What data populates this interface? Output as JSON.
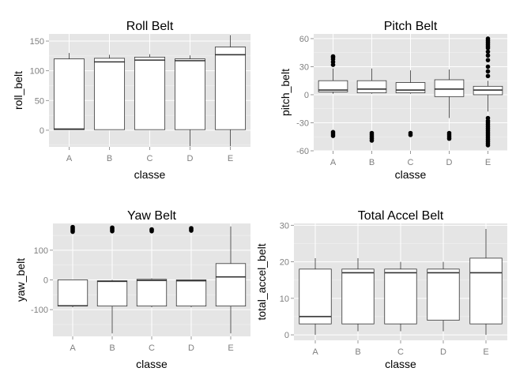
{
  "chart_data": [
    {
      "type": "boxplot",
      "title": "Roll Belt",
      "xlabel": "classe",
      "ylabel": "roll_belt",
      "categories": [
        "A",
        "B",
        "C",
        "D",
        "E"
      ],
      "ylim": [
        -28,
        162
      ],
      "yticks": [
        0,
        50,
        100,
        150
      ],
      "grid": true,
      "boxes": [
        {
          "min": 1,
          "q1": 1,
          "median": 2,
          "q3": 120,
          "max": 130,
          "outliers": []
        },
        {
          "min": 1,
          "q1": 1,
          "median": 115,
          "q3": 121,
          "max": 127,
          "outliers": []
        },
        {
          "min": 1,
          "q1": 1,
          "median": 118,
          "q3": 123,
          "max": 128,
          "outliers": []
        },
        {
          "min": -27,
          "q1": 1,
          "median": 117,
          "q3": 120,
          "max": 126,
          "outliers": []
        },
        {
          "min": -27,
          "q1": 1,
          "median": 127,
          "q3": 140,
          "max": 160,
          "outliers": []
        }
      ]
    },
    {
      "type": "boxplot",
      "title": "Pitch Belt",
      "xlabel": "classe",
      "ylabel": "pitch_belt",
      "categories": [
        "A",
        "B",
        "C",
        "D",
        "E"
      ],
      "ylim": [
        -60,
        65
      ],
      "yticks": [
        -60,
        -30,
        0,
        30,
        60
      ],
      "grid": true,
      "boxes": [
        {
          "min": 1,
          "q1": 3,
          "median": 5,
          "q3": 15,
          "max": 28,
          "outliers": [
            32,
            35,
            38,
            40,
            41,
            -40,
            -42,
            -44
          ]
        },
        {
          "min": 1,
          "q1": 2,
          "median": 6,
          "q3": 15,
          "max": 28,
          "outliers": [
            -41,
            -43,
            -45,
            -47,
            -49
          ]
        },
        {
          "min": 1,
          "q1": 2,
          "median": 5,
          "q3": 13,
          "max": 26,
          "outliers": [
            -41,
            -43
          ]
        },
        {
          "min": -25,
          "q1": -2,
          "median": 6,
          "q3": 16,
          "max": 27,
          "outliers": [
            -41,
            -43,
            -45,
            -47
          ]
        },
        {
          "min": -18,
          "q1": 0,
          "median": 5,
          "q3": 9,
          "max": 15,
          "outliers": [
            60,
            58,
            56,
            54,
            52,
            50,
            46,
            42,
            37,
            30,
            25,
            20,
            -25,
            -28,
            -30,
            -32,
            -34,
            -36,
            -38,
            -40,
            -42,
            -44,
            -46,
            -48,
            -50,
            -52,
            -54
          ]
        }
      ]
    },
    {
      "type": "boxplot",
      "title": "Yaw Belt",
      "xlabel": "classe",
      "ylabel": "yaw_belt",
      "categories": [
        "A",
        "B",
        "C",
        "D",
        "E"
      ],
      "ylim": [
        -190,
        190
      ],
      "yticks": [
        -100,
        0,
        100
      ],
      "grid": true,
      "boxes": [
        {
          "min": -92,
          "q1": -88,
          "median": -87,
          "q3": 0,
          "max": 0,
          "outliers": [
            162,
            166,
            170,
            174,
            178
          ]
        },
        {
          "min": -180,
          "q1": -88,
          "median": -5,
          "q3": -3,
          "max": 0,
          "outliers": [
            164,
            168,
            172,
            176
          ]
        },
        {
          "min": -92,
          "q1": -88,
          "median": -2,
          "q3": 2,
          "max": 5,
          "outliers": [
            164,
            168,
            170
          ]
        },
        {
          "min": -92,
          "q1": -88,
          "median": -3,
          "q3": 0,
          "max": 0,
          "outliers": [
            166,
            170,
            174
          ]
        },
        {
          "min": -180,
          "q1": -88,
          "median": 10,
          "q3": 55,
          "max": 180,
          "outliers": []
        }
      ]
    },
    {
      "type": "boxplot",
      "title": "Total Accel Belt",
      "xlabel": "classe",
      "ylabel": "total_accel_belt",
      "categories": [
        "A",
        "B",
        "C",
        "D",
        "E"
      ],
      "ylim": [
        -1.5,
        30.5
      ],
      "yticks": [
        0,
        10,
        20,
        30
      ],
      "grid": true,
      "boxes": [
        {
          "min": 0,
          "q1": 3,
          "median": 5,
          "q3": 18,
          "max": 21,
          "outliers": []
        },
        {
          "min": 1,
          "q1": 3,
          "median": 17,
          "q3": 18,
          "max": 21,
          "outliers": []
        },
        {
          "min": 1,
          "q1": 3,
          "median": 17,
          "q3": 18,
          "max": 20,
          "outliers": []
        },
        {
          "min": 1,
          "q1": 4,
          "median": 17,
          "q3": 18,
          "max": 20,
          "outliers": []
        },
        {
          "min": 0,
          "q1": 3,
          "median": 17,
          "q3": 21,
          "max": 29,
          "outliers": []
        }
      ]
    }
  ]
}
